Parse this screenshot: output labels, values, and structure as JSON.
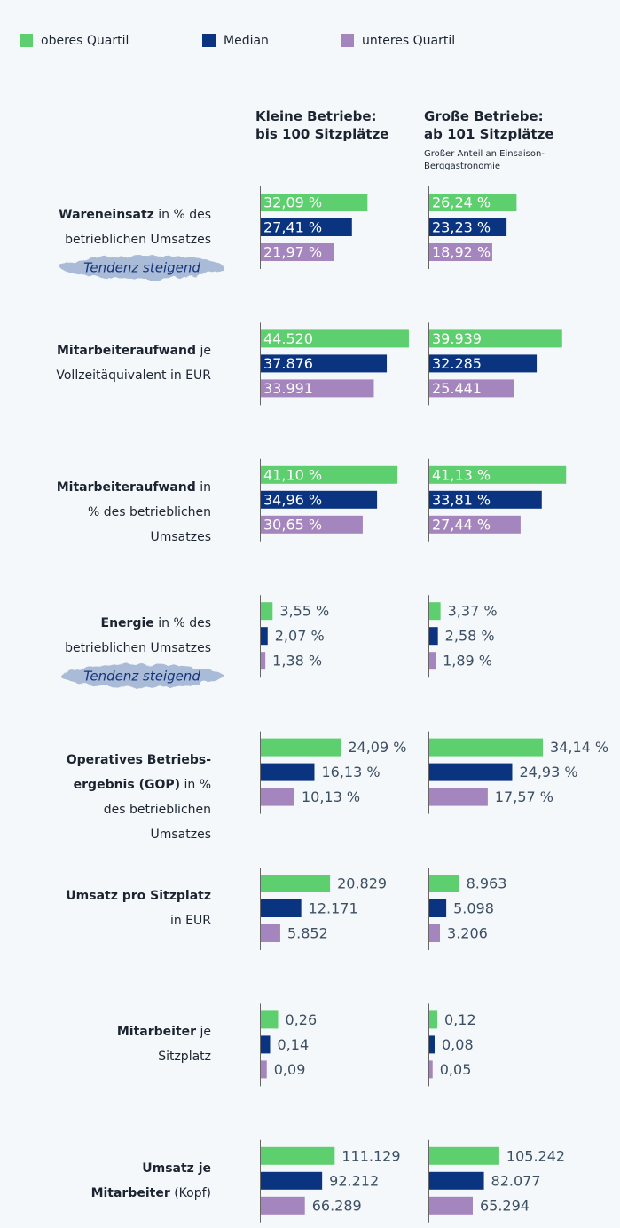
{
  "chart_data": {
    "type": "bar",
    "series": [
      {
        "name": "oberes Quartil",
        "color": "#5ecf6e"
      },
      {
        "name": "Median",
        "color": "#0a3380"
      },
      {
        "name": "unteres Quartil",
        "color": "#a585bd"
      }
    ],
    "columns": [
      {
        "lines": [
          "Kleine Betriebe:",
          "bis 100 Sitzplätze"
        ]
      },
      {
        "lines": [
          "Große Betriebe:",
          "ab 101 Sitzplätze"
        ],
        "note": "Großer Anteil an Einsaison-Berggastronomie"
      }
    ],
    "rows": [
      {
        "bold": "Wareneinsatz",
        "text": "in % des betrieblichen Umsatzes",
        "note": "Tendenz steigend",
        "xlim": [
          0,
          48
        ],
        "values": [
          [
            32.09,
            27.41,
            21.97
          ],
          [
            26.24,
            23.23,
            18.92
          ]
        ],
        "value_labels": [
          [
            "32,09 %",
            "27,41 %",
            "21,97 %"
          ],
          [
            "26,24 %",
            "23,23 %",
            "18,92 %"
          ]
        ]
      },
      {
        "bold": "Mitarbeiteraufwand",
        "text": "je Vollzeitäquivalent in EUR",
        "xlim": [
          0,
          48000
        ],
        "values": [
          [
            44520,
            37876,
            33991
          ],
          [
            39939,
            32285,
            25441
          ]
        ],
        "value_labels": [
          [
            "44.520",
            "37.876",
            "33.991"
          ],
          [
            "39.939",
            "32.285",
            "25.441"
          ]
        ]
      },
      {
        "bold": "Mitarbeiteraufwand",
        "text": "in % des betrieblichen Umsatzes",
        "xlim": [
          0,
          48
        ],
        "values": [
          [
            41.1,
            34.96,
            30.65
          ],
          [
            41.13,
            33.81,
            27.44
          ]
        ],
        "value_labels": [
          [
            "41,10 %",
            "34,96 %",
            "30,65 %"
          ],
          [
            "41,13 %",
            "33,81 %",
            "27,44 %"
          ]
        ]
      },
      {
        "bold": "Energie",
        "text": "in % des betrieblichen Umsatzes",
        "note": "Tendenz steigend",
        "xlim": [
          0,
          48
        ],
        "values": [
          [
            3.55,
            2.07,
            1.38
          ],
          [
            3.37,
            2.58,
            1.89
          ]
        ],
        "value_labels": [
          [
            "3,55 %",
            "2,07 %",
            "1,38 %"
          ],
          [
            "3,37 %",
            "2,58 %",
            "1,89 %"
          ]
        ]
      },
      {
        "bold": "Operatives Betriebs­ergebnis (GOP)",
        "text": "in % des betrieblichen Umsatzes",
        "xlim": [
          0,
          48
        ],
        "values": [
          [
            24.09,
            16.13,
            10.13
          ],
          [
            34.14,
            24.93,
            17.57
          ]
        ],
        "value_labels": [
          [
            "24,09 %",
            "16,13 %",
            "10,13 %"
          ],
          [
            "34,14 %",
            "24,93 %",
            "17,57 %"
          ]
        ]
      },
      {
        "bold": "Umsatz pro Sitzplatz",
        "text": "in EUR",
        "xlim": [
          0,
          48000
        ],
        "values": [
          [
            20829,
            12171,
            5852
          ],
          [
            8963,
            5098,
            3206
          ]
        ],
        "value_labels": [
          [
            "20.829",
            "12.171",
            "5.852"
          ],
          [
            "8.963",
            "5.098",
            "3.206"
          ]
        ]
      },
      {
        "bold": "Mitarbeiter",
        "text": "je Sitzplatz",
        "xlim": [
          0,
          2.4
        ],
        "values": [
          [
            0.26,
            0.14,
            0.09
          ],
          [
            0.12,
            0.08,
            0.05
          ]
        ],
        "value_labels": [
          [
            "0,26",
            "0,14",
            "0,09"
          ],
          [
            "0,12",
            "0,08",
            "0,05"
          ]
        ]
      },
      {
        "bold": "Umsatz je Mitarbeiter",
        "text": "(Kopf)",
        "xlim": [
          0,
          240000
        ],
        "values": [
          [
            111129,
            92212,
            66289
          ],
          [
            105242,
            82077,
            65294
          ]
        ],
        "value_labels": [
          [
            "111.129",
            "92.212",
            "66.289"
          ],
          [
            "105.242",
            "82.077",
            "65.294"
          ]
        ]
      }
    ]
  }
}
